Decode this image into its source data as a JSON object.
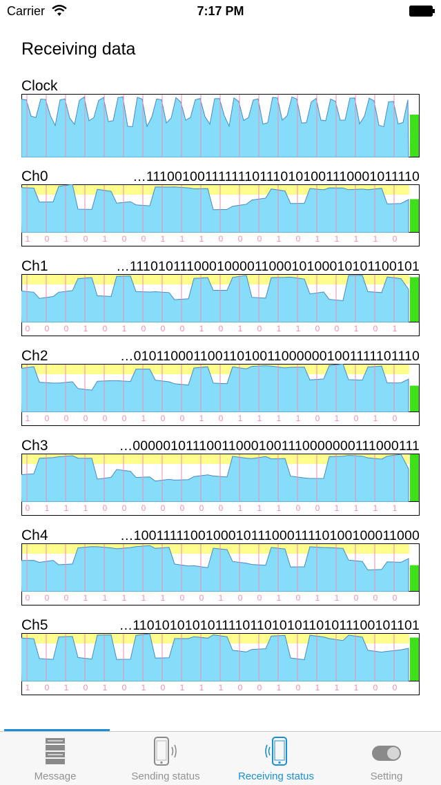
{
  "status_bar": {
    "carrier": "Carrier",
    "time": "7:17 PM"
  },
  "screen_title": "Receiving data",
  "colors": {
    "signal_fill": "#86ddf9",
    "threshold_fill": "#fdfc8c",
    "clock_tick": "#f08bb0",
    "level_bar": "#3ee01a",
    "accent": "#1a8ed6"
  },
  "clock": {
    "label": "Clock"
  },
  "channels": [
    {
      "label": "Ch0",
      "bits": "…1110010011111110111010100111000101111​0",
      "bit_labels": [
        "1",
        "0",
        "1",
        "0",
        "1",
        "0",
        "0",
        "1",
        "1",
        "1",
        "0",
        "0",
        "0",
        "1",
        "0",
        "1",
        "1",
        "1",
        "1",
        "0"
      ],
      "level": 0.7
    },
    {
      "label": "Ch1",
      "bits": "…11101011100010000110001010001010110​0101",
      "bit_labels": [
        "0",
        "0",
        "0",
        "1",
        "0",
        "1",
        "0",
        "0",
        "0",
        "1",
        "0",
        "1",
        "0",
        "1",
        "1",
        "0",
        "0",
        "1",
        "0",
        "1"
      ],
      "level": 0.95
    },
    {
      "label": "Ch2",
      "bits": "…0101100011001101001100000010011111011​10",
      "bit_labels": [
        "1",
        "0",
        "0",
        "0",
        "0",
        "0",
        "1",
        "0",
        "0",
        "1",
        "0",
        "1",
        "1",
        "1",
        "1",
        "0",
        "1",
        "0",
        "1",
        "0"
      ],
      "level": 0.55
    },
    {
      "label": "Ch3",
      "bits": "…000001011100110001001110000000111000111",
      "bit_labels": [
        "0",
        "1",
        "1",
        "1",
        "0",
        "0",
        "0",
        "0",
        "0",
        "0",
        "0",
        "1",
        "1",
        "1",
        "0",
        "0",
        "1",
        "1",
        "1",
        "1"
      ],
      "level": 1.0
    },
    {
      "label": "Ch4",
      "bits": "…10011111001000101110001111010010001100​0",
      "bit_labels": [
        "0",
        "0",
        "0",
        "1",
        "1",
        "1",
        "1",
        "1",
        "0",
        "0",
        "1",
        "0",
        "0",
        "1",
        "0",
        "1",
        "1",
        "0",
        "0",
        "0"
      ],
      "level": 0.55
    },
    {
      "label": "Ch5",
      "bits": "…1101010101011110110101011010111001011​01",
      "bit_labels": [
        "1",
        "0",
        "1",
        "0",
        "1",
        "0",
        "1",
        "0",
        "1",
        "1",
        "1",
        "0",
        "0",
        "1",
        "0",
        "1",
        "1",
        "1",
        "0",
        "0"
      ],
      "level": 0.92
    }
  ],
  "tabs": [
    {
      "label": "Message",
      "icon": "message-stack-icon",
      "active": false
    },
    {
      "label": "Sending status",
      "icon": "phone-sending-icon",
      "active": false
    },
    {
      "label": "Receiving status",
      "icon": "phone-receiving-icon",
      "active": true
    },
    {
      "label": "Setting",
      "icon": "toggle-switch-icon",
      "active": false
    }
  ]
}
